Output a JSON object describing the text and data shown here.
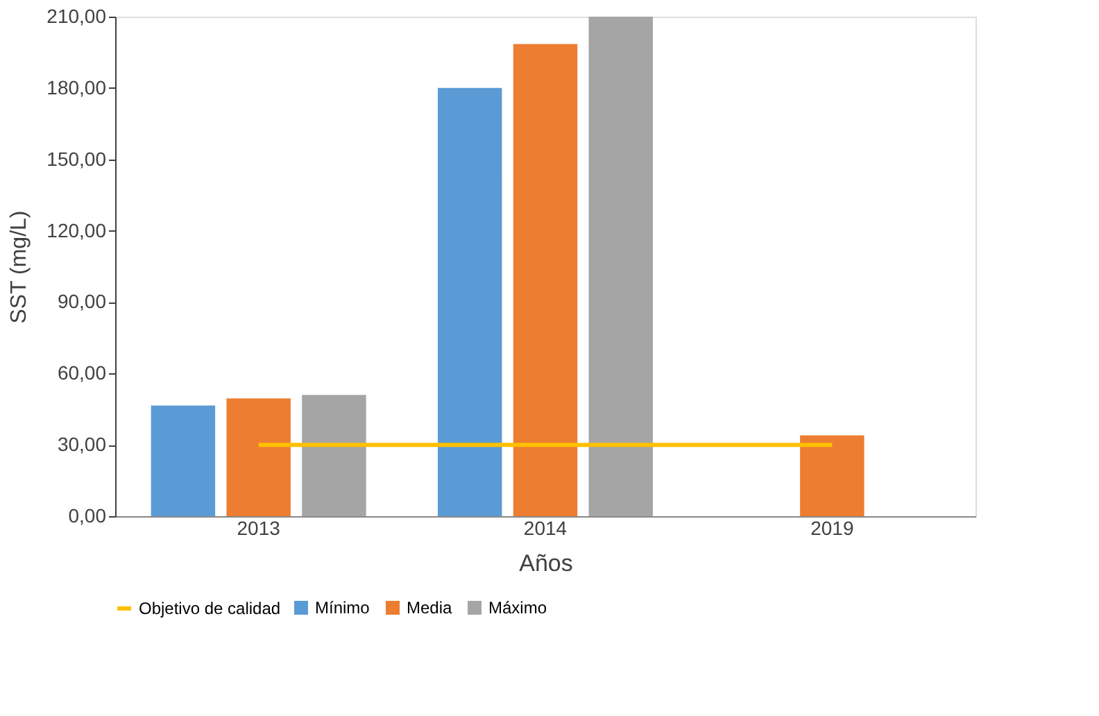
{
  "chart_data": {
    "type": "bar",
    "xlabel": "Años",
    "ylabel": "SST  (mg/L)",
    "categories": [
      "2013",
      "2014",
      "2019"
    ],
    "series": [
      {
        "name": "Mínimo",
        "color": "#5b9bd5",
        "values": [
          46.5,
          180,
          null
        ]
      },
      {
        "name": "Media",
        "color": "#ed7d31",
        "values": [
          49.5,
          198.5,
          34
        ]
      },
      {
        "name": "Máximo",
        "color": "#a5a5a5",
        "values": [
          51,
          210,
          null
        ]
      },
      {
        "name": "Objetivo de calidad",
        "type": "line",
        "color": "#ffc000",
        "values": [
          30,
          30,
          30
        ]
      }
    ],
    "ylim": [
      0,
      210
    ],
    "yticks": [
      {
        "value": 0,
        "label": "0,00"
      },
      {
        "value": 30,
        "label": "30,00"
      },
      {
        "value": 60,
        "label": "60,00"
      },
      {
        "value": 90,
        "label": "90,00"
      },
      {
        "value": 120,
        "label": "120,00"
      },
      {
        "value": 150,
        "label": "150,00"
      },
      {
        "value": 180,
        "label": "180,00"
      },
      {
        "value": 210,
        "label": "210,00"
      }
    ],
    "grid": false,
    "legend": "bottom"
  }
}
